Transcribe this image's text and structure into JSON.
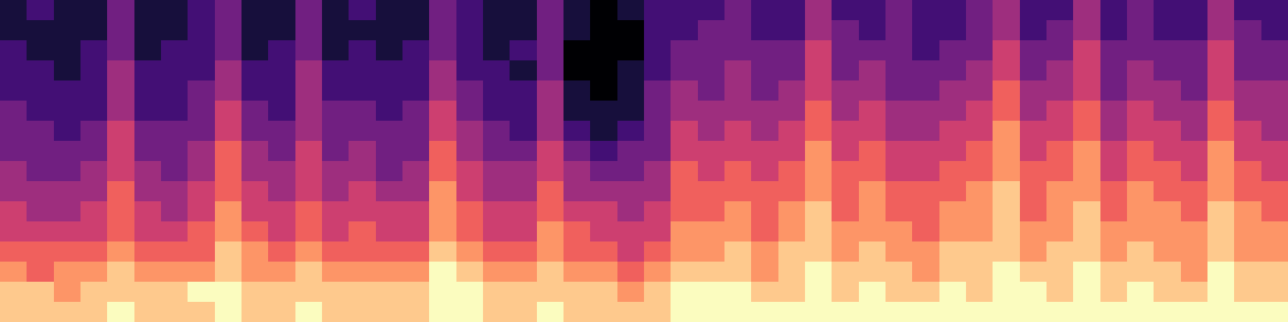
{
  "chart_data": {
    "type": "heatmap",
    "tick_labels": false,
    "cells": [
      [
        1,
        2,
        1,
        1,
        3,
        1,
        1,
        2,
        3,
        1,
        1,
        3,
        1,
        2,
        1,
        1,
        3,
        2,
        1,
        1,
        3,
        1,
        0,
        1,
        2,
        2,
        2,
        3,
        2,
        2,
        4,
        2,
        2,
        3,
        2,
        2,
        3,
        4,
        2,
        2,
        4,
        2,
        3,
        2,
        2,
        4,
        2,
        2
      ],
      [
        1,
        1,
        1,
        1,
        3,
        1,
        1,
        2,
        3,
        1,
        1,
        3,
        1,
        1,
        1,
        1,
        3,
        2,
        1,
        1,
        3,
        1,
        0,
        0,
        2,
        2,
        3,
        3,
        2,
        2,
        4,
        3,
        2,
        3,
        2,
        2,
        3,
        4,
        2,
        3,
        4,
        2,
        3,
        2,
        2,
        4,
        3,
        2
      ],
      [
        2,
        1,
        1,
        2,
        3,
        1,
        2,
        2,
        3,
        1,
        2,
        3,
        1,
        2,
        1,
        2,
        3,
        2,
        1,
        2,
        3,
        0,
        0,
        0,
        2,
        3,
        3,
        3,
        3,
        3,
        5,
        3,
        3,
        3,
        2,
        3,
        3,
        5,
        3,
        3,
        5,
        3,
        3,
        3,
        3,
        5,
        3,
        3
      ],
      [
        2,
        2,
        1,
        2,
        4,
        2,
        2,
        2,
        4,
        2,
        2,
        4,
        2,
        2,
        2,
        2,
        4,
        2,
        2,
        1,
        3,
        0,
        0,
        1,
        2,
        3,
        3,
        4,
        3,
        3,
        5,
        3,
        4,
        3,
        3,
        3,
        4,
        5,
        3,
        4,
        5,
        3,
        4,
        3,
        3,
        5,
        3,
        3
      ],
      [
        2,
        2,
        2,
        2,
        4,
        2,
        2,
        3,
        4,
        2,
        2,
        4,
        2,
        2,
        2,
        2,
        4,
        3,
        2,
        2,
        4,
        1,
        0,
        1,
        3,
        4,
        3,
        4,
        3,
        4,
        5,
        4,
        4,
        3,
        3,
        4,
        4,
        6,
        4,
        4,
        5,
        3,
        4,
        4,
        3,
        5,
        4,
        4
      ],
      [
        3,
        2,
        2,
        2,
        4,
        2,
        2,
        3,
        5,
        3,
        2,
        4,
        3,
        3,
        2,
        3,
        5,
        3,
        2,
        2,
        4,
        1,
        1,
        1,
        3,
        4,
        4,
        4,
        4,
        4,
        6,
        4,
        5,
        4,
        4,
        4,
        5,
        6,
        4,
        5,
        6,
        4,
        5,
        4,
        4,
        6,
        4,
        4
      ],
      [
        3,
        3,
        2,
        3,
        5,
        3,
        3,
        3,
        5,
        3,
        3,
        4,
        3,
        3,
        3,
        3,
        5,
        4,
        3,
        2,
        4,
        2,
        1,
        2,
        3,
        5,
        4,
        5,
        4,
        5,
        6,
        5,
        5,
        4,
        4,
        5,
        5,
        7,
        5,
        5,
        6,
        4,
        5,
        5,
        4,
        6,
        5,
        4
      ],
      [
        3,
        3,
        3,
        3,
        5,
        3,
        3,
        4,
        6,
        4,
        3,
        5,
        3,
        4,
        3,
        3,
        6,
        4,
        3,
        3,
        5,
        3,
        2,
        3,
        3,
        5,
        5,
        5,
        5,
        5,
        7,
        5,
        6,
        5,
        5,
        5,
        6,
        7,
        5,
        6,
        7,
        5,
        6,
        5,
        5,
        7,
        5,
        5
      ],
      [
        4,
        3,
        3,
        4,
        5,
        4,
        3,
        4,
        6,
        4,
        4,
        5,
        4,
        4,
        3,
        4,
        6,
        5,
        4,
        4,
        5,
        4,
        3,
        3,
        4,
        6,
        5,
        6,
        5,
        6,
        7,
        6,
        6,
        5,
        5,
        6,
        6,
        7,
        6,
        6,
        7,
        5,
        6,
        6,
        5,
        7,
        6,
        5
      ],
      [
        4,
        4,
        4,
        4,
        6,
        4,
        4,
        5,
        6,
        5,
        4,
        5,
        4,
        5,
        4,
        4,
        7,
        5,
        4,
        4,
        6,
        4,
        4,
        4,
        4,
        6,
        6,
        6,
        6,
        6,
        7,
        6,
        7,
        6,
        6,
        6,
        7,
        8,
        6,
        7,
        7,
        6,
        7,
        6,
        6,
        7,
        6,
        6
      ],
      [
        5,
        4,
        4,
        5,
        6,
        5,
        4,
        5,
        7,
        5,
        5,
        6,
        5,
        5,
        5,
        5,
        7,
        6,
        5,
        5,
        6,
        5,
        5,
        4,
        5,
        6,
        6,
        7,
        6,
        7,
        8,
        6,
        7,
        6,
        6,
        7,
        7,
        8,
        6,
        7,
        8,
        6,
        7,
        7,
        6,
        8,
        7,
        6
      ],
      [
        5,
        5,
        5,
        5,
        6,
        5,
        5,
        6,
        7,
        6,
        5,
        6,
        5,
        6,
        5,
        5,
        7,
        6,
        5,
        5,
        7,
        6,
        5,
        5,
        5,
        7,
        7,
        7,
        6,
        7,
        8,
        7,
        7,
        7,
        6,
        7,
        7,
        8,
        7,
        7,
        8,
        7,
        7,
        7,
        7,
        8,
        7,
        7
      ],
      [
        6,
        6,
        6,
        6,
        7,
        6,
        6,
        6,
        8,
        7,
        6,
        7,
        6,
        6,
        6,
        6,
        8,
        7,
        6,
        6,
        7,
        6,
        6,
        5,
        6,
        7,
        7,
        8,
        7,
        8,
        8,
        7,
        8,
        7,
        7,
        8,
        8,
        8,
        7,
        8,
        8,
        7,
        8,
        7,
        7,
        8,
        7,
        7
      ],
      [
        7,
        6,
        7,
        7,
        8,
        7,
        7,
        7,
        8,
        7,
        7,
        8,
        7,
        7,
        7,
        7,
        9,
        8,
        7,
        7,
        8,
        7,
        7,
        6,
        7,
        8,
        8,
        8,
        7,
        8,
        9,
        8,
        8,
        8,
        7,
        8,
        8,
        9,
        8,
        8,
        9,
        8,
        8,
        8,
        7,
        9,
        8,
        8
      ],
      [
        8,
        8,
        7,
        8,
        8,
        8,
        8,
        9,
        9,
        8,
        8,
        8,
        8,
        8,
        8,
        8,
        9,
        9,
        8,
        8,
        8,
        8,
        8,
        7,
        8,
        9,
        9,
        9,
        8,
        8,
        9,
        8,
        9,
        8,
        8,
        9,
        8,
        9,
        9,
        8,
        9,
        8,
        9,
        8,
        8,
        9,
        8,
        8
      ],
      [
        8,
        8,
        8,
        8,
        9,
        8,
        8,
        8,
        9,
        8,
        8,
        9,
        8,
        8,
        8,
        8,
        9,
        9,
        8,
        8,
        9,
        8,
        8,
        8,
        8,
        9,
        9,
        9,
        9,
        9,
        9,
        9,
        9,
        9,
        9,
        9,
        9,
        9,
        9,
        9,
        9,
        9,
        9,
        9,
        9,
        9,
        9,
        9
      ]
    ]
  }
}
